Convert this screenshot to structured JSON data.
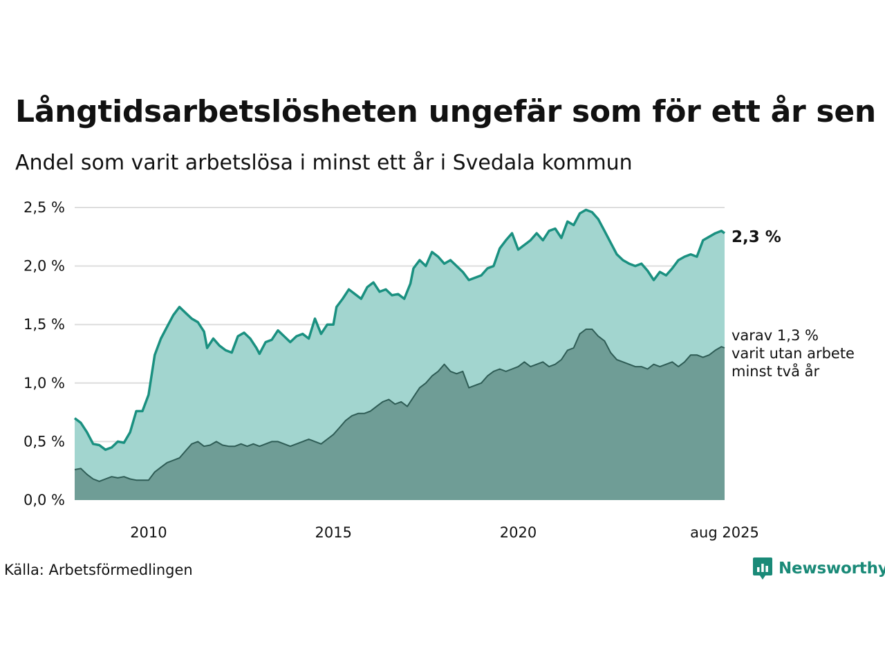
{
  "header": {
    "title": "Långtidsarbetslösheten ungefär som för ett år sen",
    "subtitle": "Andel som varit arbetslösa i minst ett år i Svedala kommun"
  },
  "footer": {
    "source": "Källa: Arbetsförmedlingen",
    "brand": "Newsworthy"
  },
  "colors": {
    "series_top_line": "#1a9080",
    "series_top_fill": "#a2d5cf",
    "series_bottom_line": "#2e5c55",
    "series_bottom_fill": "#6f9d96",
    "gridline": "#dddddd",
    "brand": "#1a8a78"
  },
  "chart_data": {
    "type": "area",
    "title": "Långtidsarbetslösheten ungefär som för ett år sen",
    "subtitle": "Andel som varit arbetslösa i minst ett år i Svedala kommun",
    "x_start": "2008-01",
    "x_end": "2025-08",
    "x_ticks": [
      {
        "date": "2010-01",
        "label": "2010"
      },
      {
        "date": "2015-01",
        "label": "2015"
      },
      {
        "date": "2020-01",
        "label": "2020"
      },
      {
        "date": "2025-08",
        "label": "aug 2025"
      }
    ],
    "y_ticks": [
      {
        "value": 0.0,
        "label": "0,0 %"
      },
      {
        "value": 0.5,
        "label": "0,5 %"
      },
      {
        "value": 1.0,
        "label": "1,0 %"
      },
      {
        "value": 1.5,
        "label": "1,5 %"
      },
      {
        "value": 2.0,
        "label": "2,0 %"
      },
      {
        "value": 2.5,
        "label": "2,5 %"
      }
    ],
    "ylim": [
      0,
      2.5
    ],
    "grid": true,
    "end_labels": {
      "top": "2,3 %",
      "bottom_lines": [
        "varav 1,3 %",
        "varit utan arbete",
        "minst två år"
      ]
    },
    "series": [
      {
        "points": [
          [
            "2008-01",
            0.7
          ],
          [
            "2008-03",
            0.66
          ],
          [
            "2008-05",
            0.58
          ],
          [
            "2008-07",
            0.48
          ],
          [
            "2008-09",
            0.47
          ],
          [
            "2008-11",
            0.43
          ],
          [
            "2009-01",
            0.45
          ],
          [
            "2009-03",
            0.5
          ],
          [
            "2009-05",
            0.49
          ],
          [
            "2009-07",
            0.58
          ],
          [
            "2009-09",
            0.76
          ],
          [
            "2009-11",
            0.76
          ],
          [
            "2010-01",
            0.9
          ],
          [
            "2010-03",
            1.24
          ],
          [
            "2010-05",
            1.38
          ],
          [
            "2010-07",
            1.48
          ],
          [
            "2010-09",
            1.58
          ],
          [
            "2010-11",
            1.65
          ],
          [
            "2011-01",
            1.6
          ],
          [
            "2011-03",
            1.55
          ],
          [
            "2011-05",
            1.52
          ],
          [
            "2011-07",
            1.44
          ],
          [
            "2011-08",
            1.3
          ],
          [
            "2011-10",
            1.38
          ],
          [
            "2011-12",
            1.32
          ],
          [
            "2012-02",
            1.28
          ],
          [
            "2012-04",
            1.26
          ],
          [
            "2012-06",
            1.4
          ],
          [
            "2012-08",
            1.43
          ],
          [
            "2012-10",
            1.38
          ],
          [
            "2012-12",
            1.3
          ],
          [
            "2013-01",
            1.25
          ],
          [
            "2013-03",
            1.35
          ],
          [
            "2013-05",
            1.37
          ],
          [
            "2013-07",
            1.45
          ],
          [
            "2013-09",
            1.4
          ],
          [
            "2013-11",
            1.35
          ],
          [
            "2014-01",
            1.4
          ],
          [
            "2014-03",
            1.42
          ],
          [
            "2014-05",
            1.38
          ],
          [
            "2014-07",
            1.55
          ],
          [
            "2014-09",
            1.42
          ],
          [
            "2014-11",
            1.5
          ],
          [
            "2015-01",
            1.5
          ],
          [
            "2015-02",
            1.65
          ],
          [
            "2015-04",
            1.72
          ],
          [
            "2015-06",
            1.8
          ],
          [
            "2015-08",
            1.76
          ],
          [
            "2015-10",
            1.72
          ],
          [
            "2015-12",
            1.82
          ],
          [
            "2016-02",
            1.86
          ],
          [
            "2016-04",
            1.78
          ],
          [
            "2016-06",
            1.8
          ],
          [
            "2016-08",
            1.75
          ],
          [
            "2016-10",
            1.76
          ],
          [
            "2016-12",
            1.72
          ],
          [
            "2017-02",
            1.85
          ],
          [
            "2017-03",
            1.98
          ],
          [
            "2017-05",
            2.05
          ],
          [
            "2017-07",
            2.0
          ],
          [
            "2017-09",
            2.12
          ],
          [
            "2017-11",
            2.08
          ],
          [
            "2018-01",
            2.02
          ],
          [
            "2018-03",
            2.05
          ],
          [
            "2018-05",
            2.0
          ],
          [
            "2018-07",
            1.95
          ],
          [
            "2018-09",
            1.88
          ],
          [
            "2018-11",
            1.9
          ],
          [
            "2019-01",
            1.92
          ],
          [
            "2019-03",
            1.98
          ],
          [
            "2019-05",
            2.0
          ],
          [
            "2019-07",
            2.15
          ],
          [
            "2019-09",
            2.22
          ],
          [
            "2019-11",
            2.28
          ],
          [
            "2020-01",
            2.14
          ],
          [
            "2020-03",
            2.18
          ],
          [
            "2020-05",
            2.22
          ],
          [
            "2020-07",
            2.28
          ],
          [
            "2020-09",
            2.22
          ],
          [
            "2020-11",
            2.3
          ],
          [
            "2021-01",
            2.32
          ],
          [
            "2021-03",
            2.24
          ],
          [
            "2021-05",
            2.38
          ],
          [
            "2021-07",
            2.35
          ],
          [
            "2021-09",
            2.45
          ],
          [
            "2021-11",
            2.48
          ],
          [
            "2022-01",
            2.46
          ],
          [
            "2022-03",
            2.4
          ],
          [
            "2022-05",
            2.3
          ],
          [
            "2022-07",
            2.2
          ],
          [
            "2022-09",
            2.1
          ],
          [
            "2022-11",
            2.05
          ],
          [
            "2023-01",
            2.02
          ],
          [
            "2023-03",
            2.0
          ],
          [
            "2023-05",
            2.02
          ],
          [
            "2023-07",
            1.96
          ],
          [
            "2023-09",
            1.88
          ],
          [
            "2023-11",
            1.95
          ],
          [
            "2024-01",
            1.92
          ],
          [
            "2024-03",
            1.98
          ],
          [
            "2024-05",
            2.05
          ],
          [
            "2024-07",
            2.08
          ],
          [
            "2024-09",
            2.1
          ],
          [
            "2024-11",
            2.08
          ],
          [
            "2025-01",
            2.22
          ],
          [
            "2025-03",
            2.25
          ],
          [
            "2025-05",
            2.28
          ],
          [
            "2025-07",
            2.3
          ],
          [
            "2025-08",
            2.28
          ]
        ]
      },
      {
        "points": [
          [
            "2008-01",
            0.26
          ],
          [
            "2008-03",
            0.27
          ],
          [
            "2008-05",
            0.22
          ],
          [
            "2008-07",
            0.18
          ],
          [
            "2008-09",
            0.16
          ],
          [
            "2008-11",
            0.18
          ],
          [
            "2009-01",
            0.2
          ],
          [
            "2009-03",
            0.19
          ],
          [
            "2009-05",
            0.2
          ],
          [
            "2009-07",
            0.18
          ],
          [
            "2009-09",
            0.17
          ],
          [
            "2009-11",
            0.17
          ],
          [
            "2010-01",
            0.17
          ],
          [
            "2010-03",
            0.24
          ],
          [
            "2010-05",
            0.28
          ],
          [
            "2010-07",
            0.32
          ],
          [
            "2010-09",
            0.34
          ],
          [
            "2010-11",
            0.36
          ],
          [
            "2011-01",
            0.42
          ],
          [
            "2011-03",
            0.48
          ],
          [
            "2011-05",
            0.5
          ],
          [
            "2011-07",
            0.46
          ],
          [
            "2011-09",
            0.47
          ],
          [
            "2011-11",
            0.5
          ],
          [
            "2012-01",
            0.47
          ],
          [
            "2012-03",
            0.46
          ],
          [
            "2012-05",
            0.46
          ],
          [
            "2012-07",
            0.48
          ],
          [
            "2012-09",
            0.46
          ],
          [
            "2012-11",
            0.48
          ],
          [
            "2013-01",
            0.46
          ],
          [
            "2013-03",
            0.48
          ],
          [
            "2013-05",
            0.5
          ],
          [
            "2013-07",
            0.5
          ],
          [
            "2013-09",
            0.48
          ],
          [
            "2013-11",
            0.46
          ],
          [
            "2014-01",
            0.48
          ],
          [
            "2014-03",
            0.5
          ],
          [
            "2014-05",
            0.52
          ],
          [
            "2014-07",
            0.5
          ],
          [
            "2014-09",
            0.48
          ],
          [
            "2014-11",
            0.52
          ],
          [
            "2015-01",
            0.56
          ],
          [
            "2015-03",
            0.62
          ],
          [
            "2015-05",
            0.68
          ],
          [
            "2015-07",
            0.72
          ],
          [
            "2015-09",
            0.74
          ],
          [
            "2015-11",
            0.74
          ],
          [
            "2016-01",
            0.76
          ],
          [
            "2016-03",
            0.8
          ],
          [
            "2016-05",
            0.84
          ],
          [
            "2016-07",
            0.86
          ],
          [
            "2016-09",
            0.82
          ],
          [
            "2016-11",
            0.84
          ],
          [
            "2017-01",
            0.8
          ],
          [
            "2017-03",
            0.88
          ],
          [
            "2017-05",
            0.96
          ],
          [
            "2017-07",
            1.0
          ],
          [
            "2017-09",
            1.06
          ],
          [
            "2017-11",
            1.1
          ],
          [
            "2018-01",
            1.16
          ],
          [
            "2018-03",
            1.1
          ],
          [
            "2018-05",
            1.08
          ],
          [
            "2018-07",
            1.1
          ],
          [
            "2018-09",
            0.96
          ],
          [
            "2018-11",
            0.98
          ],
          [
            "2019-01",
            1.0
          ],
          [
            "2019-03",
            1.06
          ],
          [
            "2019-05",
            1.1
          ],
          [
            "2019-07",
            1.12
          ],
          [
            "2019-09",
            1.1
          ],
          [
            "2019-11",
            1.12
          ],
          [
            "2020-01",
            1.14
          ],
          [
            "2020-03",
            1.18
          ],
          [
            "2020-05",
            1.14
          ],
          [
            "2020-07",
            1.16
          ],
          [
            "2020-09",
            1.18
          ],
          [
            "2020-11",
            1.14
          ],
          [
            "2021-01",
            1.16
          ],
          [
            "2021-03",
            1.2
          ],
          [
            "2021-05",
            1.28
          ],
          [
            "2021-07",
            1.3
          ],
          [
            "2021-09",
            1.42
          ],
          [
            "2021-11",
            1.46
          ],
          [
            "2022-01",
            1.46
          ],
          [
            "2022-03",
            1.4
          ],
          [
            "2022-05",
            1.36
          ],
          [
            "2022-07",
            1.26
          ],
          [
            "2022-09",
            1.2
          ],
          [
            "2022-11",
            1.18
          ],
          [
            "2023-01",
            1.16
          ],
          [
            "2023-03",
            1.14
          ],
          [
            "2023-05",
            1.14
          ],
          [
            "2023-07",
            1.12
          ],
          [
            "2023-09",
            1.16
          ],
          [
            "2023-11",
            1.14
          ],
          [
            "2024-01",
            1.16
          ],
          [
            "2024-03",
            1.18
          ],
          [
            "2024-05",
            1.14
          ],
          [
            "2024-07",
            1.18
          ],
          [
            "2024-09",
            1.24
          ],
          [
            "2024-11",
            1.24
          ],
          [
            "2025-01",
            1.22
          ],
          [
            "2025-03",
            1.24
          ],
          [
            "2025-05",
            1.28
          ],
          [
            "2025-07",
            1.31
          ],
          [
            "2025-08",
            1.3
          ]
        ]
      }
    ]
  }
}
